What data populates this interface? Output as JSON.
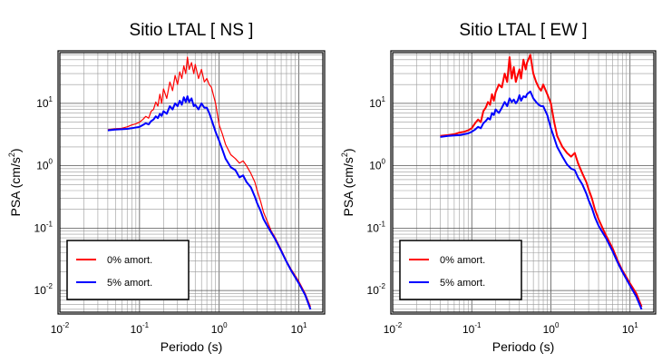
{
  "chart_data": [
    {
      "type": "line",
      "title": "Sitio LTAL [ NS ]",
      "xlabel": "Periodo (s)",
      "ylabel_base": "PSA (cm/s",
      "ylabel_sup": "2",
      "ylabel_end": ")",
      "x_scale": "log",
      "y_scale": "log",
      "xlim": [
        0.01,
        20
      ],
      "ylim": [
        0.0045,
        65
      ],
      "grid": true,
      "legend": "bottom-left",
      "x_ticks": [
        {
          "base": "10",
          "exp": "-2"
        },
        {
          "base": "10",
          "exp": "-1"
        },
        {
          "base": "10",
          "exp": "0"
        },
        {
          "base": "10",
          "exp": "1"
        }
      ],
      "y_ticks": [
        {
          "base": "10",
          "exp": "-2"
        },
        {
          "base": "10",
          "exp": "-1"
        },
        {
          "base": "10",
          "exp": "0"
        },
        {
          "base": "10",
          "exp": "1"
        }
      ],
      "series": [
        {
          "name": "0% amort.",
          "color": "#ff0000",
          "width": 1.2,
          "x": [
            0.04,
            0.05,
            0.06,
            0.07,
            0.08,
            0.09,
            0.1,
            0.11,
            0.12,
            0.13,
            0.14,
            0.15,
            0.16,
            0.17,
            0.18,
            0.19,
            0.2,
            0.22,
            0.24,
            0.26,
            0.28,
            0.3,
            0.32,
            0.34,
            0.36,
            0.38,
            0.4,
            0.42,
            0.45,
            0.48,
            0.5,
            0.55,
            0.6,
            0.65,
            0.7,
            0.75,
            0.8,
            0.9,
            1.0,
            1.1,
            1.2,
            1.4,
            1.6,
            1.8,
            2.0,
            2.2,
            2.5,
            2.8,
            3.0,
            3.3,
            3.6,
            4.0,
            4.5,
            5,
            6,
            7,
            8,
            10,
            12,
            14
          ],
          "y": [
            3.8,
            3.9,
            4.0,
            4.2,
            4.5,
            4.7,
            5.0,
            5.5,
            6.2,
            5.8,
            7.5,
            8.0,
            10.5,
            9.0,
            14.0,
            10.0,
            17.0,
            12.0,
            22.0,
            16.0,
            28.0,
            20.0,
            32.0,
            25.0,
            40.0,
            30.0,
            55.0,
            35.0,
            45.0,
            30.0,
            42.0,
            25.0,
            35.0,
            22.0,
            25.0,
            20.0,
            18.0,
            10.0,
            4.5,
            3.2,
            2.2,
            1.5,
            1.3,
            1.1,
            1.2,
            1.0,
            0.75,
            0.55,
            0.4,
            0.27,
            0.18,
            0.13,
            0.09,
            0.072,
            0.045,
            0.03,
            0.022,
            0.014,
            0.009,
            0.0055
          ]
        },
        {
          "name": "5% amort.",
          "color": "#0000ff",
          "width": 2,
          "x": [
            0.04,
            0.05,
            0.06,
            0.07,
            0.08,
            0.09,
            0.1,
            0.11,
            0.12,
            0.13,
            0.14,
            0.15,
            0.16,
            0.17,
            0.18,
            0.19,
            0.2,
            0.22,
            0.24,
            0.26,
            0.28,
            0.3,
            0.32,
            0.34,
            0.36,
            0.38,
            0.4,
            0.42,
            0.45,
            0.48,
            0.5,
            0.55,
            0.6,
            0.65,
            0.7,
            0.75,
            0.8,
            0.9,
            1.0,
            1.1,
            1.2,
            1.4,
            1.6,
            1.8,
            2.0,
            2.2,
            2.5,
            2.8,
            3.0,
            3.3,
            3.6,
            4.0,
            4.5,
            5,
            6,
            7,
            8,
            10,
            12,
            14
          ],
          "y": [
            3.7,
            3.8,
            3.85,
            3.9,
            4.0,
            4.1,
            4.2,
            4.5,
            4.8,
            4.6,
            5.2,
            5.5,
            6.2,
            5.8,
            6.8,
            6.3,
            7.5,
            6.8,
            9.0,
            8.0,
            10.0,
            9.0,
            11.0,
            9.5,
            12.5,
            10.5,
            13.0,
            10.5,
            12.0,
            9.0,
            9.5,
            8.0,
            10.0,
            8.5,
            8.5,
            7.0,
            5.5,
            3.5,
            2.5,
            1.8,
            1.3,
            0.95,
            0.85,
            0.65,
            0.7,
            0.55,
            0.45,
            0.32,
            0.25,
            0.19,
            0.14,
            0.11,
            0.085,
            0.068,
            0.043,
            0.029,
            0.021,
            0.013,
            0.0085,
            0.005
          ]
        }
      ]
    },
    {
      "type": "line",
      "title": "Sitio LTAL [ EW ]",
      "xlabel": "Periodo (s)",
      "ylabel_base": "PSA (cm/s",
      "ylabel_sup": "2",
      "ylabel_end": ")",
      "x_scale": "log",
      "y_scale": "log",
      "xlim": [
        0.01,
        20
      ],
      "ylim": [
        0.0045,
        65
      ],
      "grid": true,
      "legend": "bottom-left",
      "x_ticks": [
        {
          "base": "10",
          "exp": "-2"
        },
        {
          "base": "10",
          "exp": "-1"
        },
        {
          "base": "10",
          "exp": "0"
        },
        {
          "base": "10",
          "exp": "1"
        }
      ],
      "y_ticks": [
        {
          "base": "10",
          "exp": "-2"
        },
        {
          "base": "10",
          "exp": "-1"
        },
        {
          "base": "10",
          "exp": "0"
        },
        {
          "base": "10",
          "exp": "1"
        }
      ],
      "series": [
        {
          "name": "0% amort.",
          "color": "#ff0000",
          "width": 2,
          "x": [
            0.04,
            0.05,
            0.06,
            0.07,
            0.08,
            0.09,
            0.1,
            0.11,
            0.12,
            0.13,
            0.14,
            0.15,
            0.16,
            0.17,
            0.18,
            0.19,
            0.2,
            0.22,
            0.24,
            0.26,
            0.28,
            0.3,
            0.32,
            0.34,
            0.36,
            0.38,
            0.4,
            0.42,
            0.45,
            0.48,
            0.5,
            0.55,
            0.6,
            0.65,
            0.7,
            0.75,
            0.8,
            0.9,
            1.0,
            1.1,
            1.2,
            1.4,
            1.6,
            1.8,
            2.0,
            2.2,
            2.5,
            2.8,
            3.0,
            3.3,
            3.6,
            4.0,
            4.5,
            5,
            6,
            7,
            8,
            10,
            12,
            14
          ],
          "y": [
            3.0,
            3.1,
            3.2,
            3.4,
            3.5,
            3.7,
            4.0,
            4.8,
            5.5,
            5.0,
            7.5,
            8.5,
            10.5,
            9.5,
            14.0,
            11.0,
            15.0,
            20.0,
            18.0,
            30.0,
            22.0,
            55.0,
            25.0,
            38.0,
            22.0,
            28.0,
            35.0,
            25.0,
            50.0,
            35.0,
            45.0,
            60.0,
            30.0,
            22.0,
            18.0,
            16.0,
            20.0,
            14.0,
            10.0,
            5.0,
            3.0,
            2.0,
            1.6,
            1.4,
            1.6,
            1.1,
            0.75,
            0.55,
            0.42,
            0.3,
            0.2,
            0.14,
            0.1,
            0.075,
            0.048,
            0.03,
            0.021,
            0.013,
            0.009,
            0.0055
          ]
        },
        {
          "name": "5% amort.",
          "color": "#0000ff",
          "width": 2,
          "x": [
            0.04,
            0.05,
            0.06,
            0.07,
            0.08,
            0.09,
            0.1,
            0.11,
            0.12,
            0.13,
            0.14,
            0.15,
            0.16,
            0.17,
            0.18,
            0.19,
            0.2,
            0.22,
            0.24,
            0.26,
            0.28,
            0.3,
            0.32,
            0.34,
            0.36,
            0.38,
            0.4,
            0.42,
            0.45,
            0.48,
            0.5,
            0.55,
            0.6,
            0.65,
            0.7,
            0.75,
            0.8,
            0.9,
            1.0,
            1.1,
            1.2,
            1.4,
            1.6,
            1.8,
            2.0,
            2.2,
            2.5,
            2.8,
            3.0,
            3.3,
            3.6,
            4.0,
            4.5,
            5,
            6,
            7,
            8,
            10,
            12,
            14
          ],
          "y": [
            2.9,
            3.0,
            3.05,
            3.1,
            3.2,
            3.3,
            3.5,
            3.8,
            4.2,
            4.0,
            4.8,
            5.2,
            5.8,
            5.5,
            7.0,
            6.5,
            8.0,
            7.0,
            8.5,
            10.5,
            9.0,
            12.0,
            10.5,
            11.5,
            10.0,
            11.0,
            13.5,
            11.0,
            13.0,
            12.5,
            14.0,
            15.5,
            12.0,
            10.5,
            9.5,
            9.0,
            9.0,
            6.5,
            4.0,
            2.8,
            2.0,
            1.4,
            1.05,
            0.9,
            0.85,
            0.65,
            0.5,
            0.36,
            0.28,
            0.21,
            0.15,
            0.11,
            0.085,
            0.068,
            0.043,
            0.028,
            0.02,
            0.012,
            0.008,
            0.005
          ]
        }
      ]
    }
  ]
}
